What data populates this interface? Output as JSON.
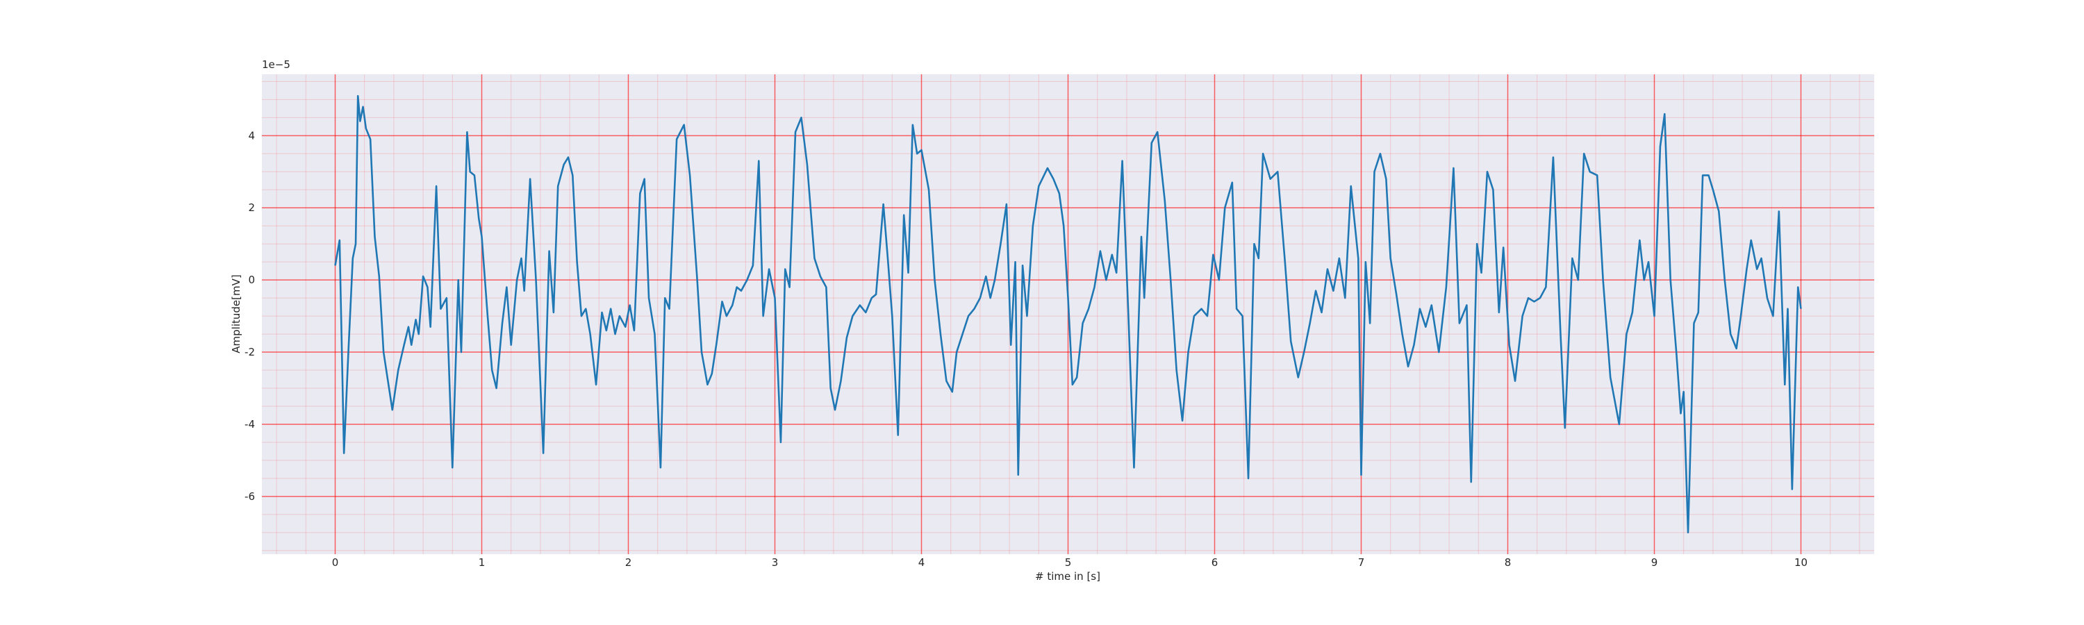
{
  "chart_data": {
    "type": "line",
    "xlabel": "# time in [s]",
    "ylabel": "Amplitude[mV]",
    "offset_text": "1e−5",
    "color": "#1f77b4",
    "xlim": [
      -0.5,
      10.5
    ],
    "ylim": [
      -7.6,
      5.7
    ],
    "xticks": [
      0,
      1,
      2,
      3,
      4,
      5,
      6,
      7,
      8,
      9,
      10
    ],
    "yticks": [
      -6,
      -4,
      -2,
      0,
      2,
      4
    ],
    "grid": true,
    "grid_color": "#ff0000",
    "xminorticks": [
      -0.4,
      -0.2,
      0.2,
      0.4,
      0.6,
      0.8,
      1.2,
      1.4,
      1.6,
      1.8,
      2.2,
      2.4,
      2.6,
      2.8,
      3.2,
      3.4,
      3.6,
      3.8,
      4.2,
      4.4,
      4.6,
      4.8,
      5.2,
      5.4,
      5.6,
      5.8,
      6.2,
      6.4,
      6.6,
      6.8,
      7.2,
      7.4,
      7.6,
      7.8,
      8.2,
      8.4,
      8.6,
      8.8,
      9.2,
      9.4,
      9.6,
      9.8,
      10.2,
      10.4
    ],
    "yminorticks": [
      -7.5,
      -7,
      -6.5,
      -5.5,
      -5,
      -4.5,
      -3.5,
      -3,
      -2.5,
      -1.5,
      -1,
      -0.5,
      0.5,
      1,
      1.5,
      2.5,
      3,
      3.5,
      4.5,
      5,
      5.5
    ],
    "x": [
      0.0,
      0.03,
      0.06,
      0.09,
      0.12,
      0.14,
      0.155,
      0.17,
      0.19,
      0.21,
      0.24,
      0.27,
      0.3,
      0.33,
      0.39,
      0.43,
      0.47,
      0.5,
      0.52,
      0.55,
      0.57,
      0.6,
      0.63,
      0.65,
      0.69,
      0.72,
      0.76,
      0.8,
      0.84,
      0.86,
      0.9,
      0.92,
      0.95,
      0.98,
      1.0,
      1.04,
      1.07,
      1.1,
      1.14,
      1.17,
      1.2,
      1.24,
      1.27,
      1.29,
      1.33,
      1.37,
      1.42,
      1.46,
      1.49,
      1.52,
      1.56,
      1.59,
      1.62,
      1.65,
      1.68,
      1.71,
      1.74,
      1.78,
      1.82,
      1.85,
      1.88,
      1.91,
      1.94,
      1.98,
      2.01,
      2.04,
      2.08,
      2.11,
      2.14,
      2.18,
      2.22,
      2.25,
      2.28,
      2.33,
      2.38,
      2.42,
      2.47,
      2.5,
      2.54,
      2.57,
      2.6,
      2.64,
      2.67,
      2.71,
      2.74,
      2.77,
      2.81,
      2.85,
      2.89,
      2.92,
      2.96,
      3.0,
      3.04,
      3.07,
      3.1,
      3.14,
      3.18,
      3.22,
      3.27,
      3.31,
      3.35,
      3.38,
      3.41,
      3.45,
      3.49,
      3.53,
      3.58,
      3.62,
      3.66,
      3.69,
      3.74,
      3.77,
      3.8,
      3.84,
      3.88,
      3.91,
      3.94,
      3.97,
      4.0,
      4.05,
      4.09,
      4.13,
      4.17,
      4.21,
      4.24,
      4.28,
      4.32,
      4.36,
      4.4,
      4.44,
      4.47,
      4.5,
      4.54,
      4.58,
      4.61,
      4.64,
      4.66,
      4.69,
      4.72,
      4.76,
      4.8,
      4.86,
      4.9,
      4.94,
      4.97,
      5.0,
      5.03,
      5.06,
      5.1,
      5.14,
      5.18,
      5.22,
      5.26,
      5.3,
      5.33,
      5.37,
      5.41,
      5.45,
      5.5,
      5.52,
      5.57,
      5.61,
      5.66,
      5.7,
      5.74,
      5.78,
      5.82,
      5.86,
      5.91,
      5.95,
      5.99,
      6.03,
      6.07,
      6.12,
      6.15,
      6.19,
      6.23,
      6.27,
      6.3,
      6.33,
      6.38,
      6.43,
      6.48,
      6.52,
      6.57,
      6.61,
      6.65,
      6.69,
      6.73,
      6.77,
      6.81,
      6.85,
      6.89,
      6.93,
      6.98,
      7.0,
      7.03,
      7.06,
      7.09,
      7.13,
      7.17,
      7.2,
      7.24,
      7.28,
      7.32,
      7.36,
      7.4,
      7.44,
      7.48,
      7.53,
      7.58,
      7.63,
      7.67,
      7.72,
      7.75,
      7.79,
      7.82,
      7.86,
      7.9,
      7.94,
      7.97,
      8.01,
      8.05,
      8.1,
      8.14,
      8.18,
      8.22,
      8.26,
      8.31,
      8.36,
      8.39,
      8.44,
      8.48,
      8.52,
      8.56,
      8.61,
      8.65,
      8.7,
      8.76,
      8.81,
      8.85,
      8.9,
      8.93,
      8.96,
      9.0,
      9.04,
      9.07,
      9.11,
      9.15,
      9.18,
      9.2,
      9.23,
      9.27,
      9.3,
      9.33,
      9.37,
      9.4,
      9.44,
      9.48,
      9.52,
      9.56,
      9.59,
      9.63,
      9.66,
      9.7,
      9.73,
      9.77,
      9.81,
      9.85,
      9.89,
      9.91,
      9.94,
      9.98,
      10.0
    ],
    "values": [
      0.4,
      1.1,
      -4.8,
      -2.0,
      0.6,
      1.0,
      5.1,
      4.4,
      4.8,
      4.2,
      3.9,
      1.2,
      0.1,
      -2.0,
      -3.6,
      -2.5,
      -1.8,
      -1.3,
      -1.8,
      -1.1,
      -1.5,
      0.1,
      -0.2,
      -1.3,
      2.6,
      -0.8,
      -0.5,
      -5.2,
      0.0,
      -2.0,
      4.1,
      3.0,
      2.9,
      1.7,
      1.2,
      -1.0,
      -2.5,
      -3.0,
      -1.2,
      -0.2,
      -1.8,
      0.0,
      0.6,
      -0.3,
      2.8,
      0.0,
      -4.8,
      0.8,
      -0.9,
      2.6,
      3.2,
      3.4,
      2.9,
      0.5,
      -1.0,
      -0.8,
      -1.5,
      -2.9,
      -0.9,
      -1.4,
      -0.8,
      -1.5,
      -1.0,
      -1.3,
      -0.7,
      -1.4,
      2.4,
      2.8,
      -0.5,
      -1.5,
      -5.2,
      -0.5,
      -0.8,
      3.9,
      4.3,
      2.9,
      0.0,
      -2.0,
      -2.9,
      -2.6,
      -1.8,
      -0.6,
      -1.0,
      -0.7,
      -0.2,
      -0.3,
      0.0,
      0.4,
      3.3,
      -1.0,
      0.3,
      -0.5,
      -4.5,
      0.3,
      -0.2,
      4.1,
      4.5,
      3.2,
      0.6,
      0.1,
      -0.2,
      -3.0,
      -3.6,
      -2.8,
      -1.6,
      -1.0,
      -0.7,
      -0.9,
      -0.5,
      -0.4,
      2.1,
      0.6,
      -1.0,
      -4.3,
      1.8,
      0.2,
      4.3,
      3.5,
      3.6,
      2.5,
      0.0,
      -1.5,
      -2.8,
      -3.1,
      -2.0,
      -1.5,
      -1.0,
      -0.8,
      -0.5,
      0.1,
      -0.5,
      0.0,
      1.0,
      2.1,
      -1.8,
      0.5,
      -5.4,
      0.4,
      -1.0,
      1.5,
      2.6,
      3.1,
      2.8,
      2.4,
      1.5,
      -0.5,
      -2.9,
      -2.7,
      -1.2,
      -0.8,
      -0.2,
      0.8,
      0.0,
      0.7,
      0.2,
      3.3,
      -0.8,
      -5.2,
      1.2,
      -0.5,
      3.8,
      4.1,
      2.2,
      0.0,
      -2.5,
      -3.9,
      -2.0,
      -1.0,
      -0.8,
      -1.0,
      0.7,
      0.0,
      2.0,
      2.7,
      -0.8,
      -1.0,
      -5.5,
      1.0,
      0.6,
      3.5,
      2.8,
      3.0,
      0.5,
      -1.7,
      -2.7,
      -2.0,
      -1.2,
      -0.3,
      -0.9,
      0.3,
      -0.3,
      0.6,
      -0.5,
      2.6,
      0.6,
      -5.4,
      0.5,
      -1.2,
      3.0,
      3.5,
      2.8,
      0.6,
      -0.4,
      -1.5,
      -2.4,
      -1.8,
      -0.8,
      -1.3,
      -0.7,
      -2.0,
      -0.2,
      3.1,
      -1.2,
      -0.7,
      -5.6,
      1.0,
      0.2,
      3.0,
      2.5,
      -0.9,
      0.9,
      -1.8,
      -2.8,
      -1.0,
      -0.5,
      -0.6,
      -0.5,
      -0.2,
      3.4,
      -1.5,
      -4.1,
      0.6,
      0.0,
      3.5,
      3.0,
      2.9,
      0.0,
      -2.7,
      -4.0,
      -1.5,
      -0.9,
      1.1,
      0.0,
      0.5,
      -1.0,
      3.7,
      4.6,
      0.0,
      -2.0,
      -3.7,
      -3.1,
      -7.0,
      -1.2,
      -0.9,
      2.9,
      2.9,
      2.5,
      1.9,
      0.0,
      -1.5,
      -1.9,
      -1.0,
      0.3,
      1.1,
      0.3,
      0.6,
      -0.5,
      -1.0,
      1.9,
      -2.9,
      -0.8,
      -5.8,
      -0.2,
      -0.8
    ]
  }
}
